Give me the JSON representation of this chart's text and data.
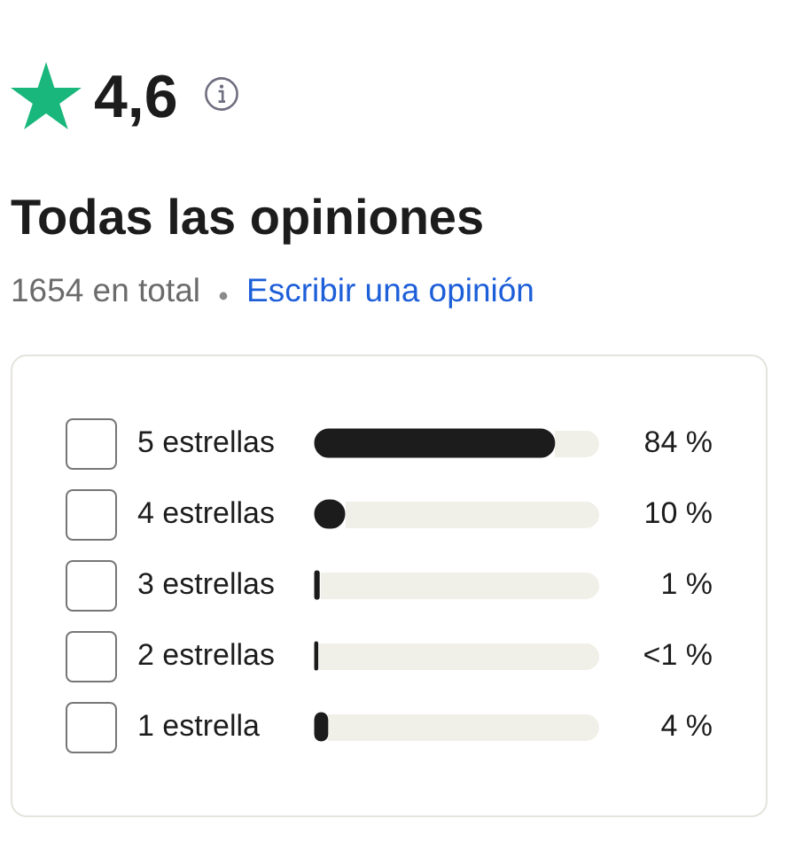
{
  "chart_data": {
    "type": "bar",
    "orientation": "horizontal",
    "title": "Todas las opiniones",
    "subtitle": "1654 en total",
    "annotations": [
      "4,6",
      "Escribir una opinión"
    ],
    "categories": [
      "5 estrellas",
      "4 estrellas",
      "3 estrellas",
      "2 estrellas",
      "1 estrella"
    ],
    "values": [
      84,
      10,
      1,
      0.5,
      4
    ],
    "value_labels": [
      "84 %",
      "10 %",
      "1 %",
      "<1 %",
      "4 %"
    ],
    "color": "#1c1c1c",
    "xlim": [
      0,
      100
    ],
    "tick_labels": "y"
  }
}
